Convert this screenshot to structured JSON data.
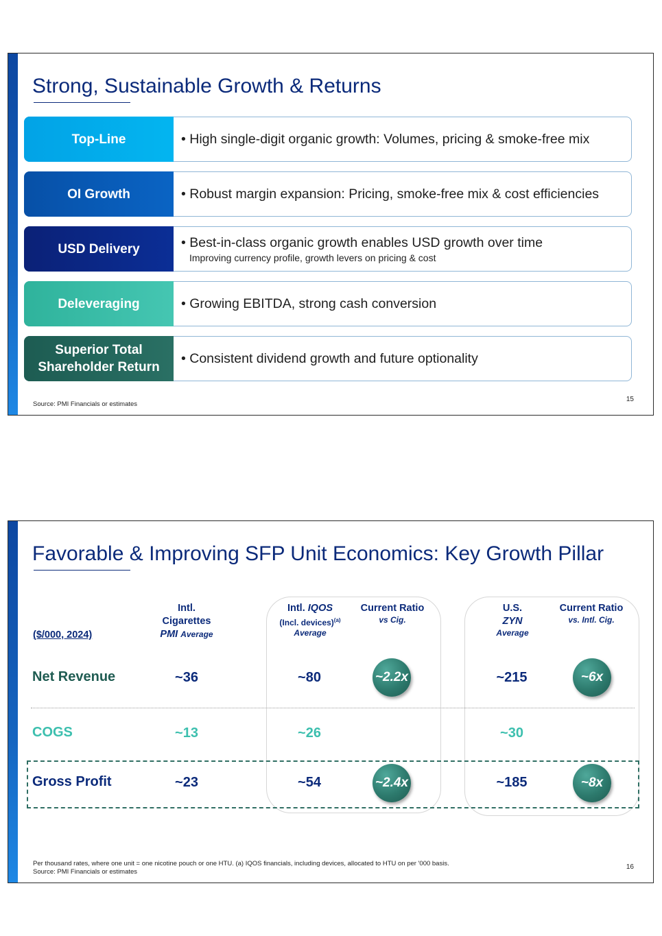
{
  "slide1": {
    "title": "Strong, Sustainable Growth & Returns",
    "rows": [
      {
        "label_lines": [
          "Top-Line"
        ],
        "text": "• High single-digit organic growth: Volumes, pricing & smoke-free mix",
        "sub": ""
      },
      {
        "label_lines": [
          "OI Growth"
        ],
        "text": "• Robust margin expansion: Pricing, smoke-free mix & cost efficiencies",
        "sub": ""
      },
      {
        "label_lines": [
          "USD Delivery"
        ],
        "text": "• Best-in-class organic growth enables USD growth over time",
        "sub": "Improving currency profile, growth levers on pricing & cost"
      },
      {
        "label_lines": [
          "Deleveraging"
        ],
        "text": "• Growing EBITDA, strong cash conversion",
        "sub": ""
      },
      {
        "label_lines": [
          "Superior Total",
          "Shareholder Return"
        ],
        "text": "• Consistent dividend growth and future optionality",
        "sub": ""
      }
    ],
    "source": "Source: PMI Financials or estimates",
    "page": "15"
  },
  "slide2": {
    "title": "Favorable & Improving SFP Unit Economics: Key Growth Pillar",
    "unit_label": "($/000, 2024)",
    "headers": {
      "intl_cig": {
        "l1": "Intl.",
        "l2": "Cigarettes",
        "l3a": "PMI",
        "l3b": "Average"
      },
      "intl_iqos": {
        "l1a": "Intl.",
        "l1b": "IQOS",
        "l2": "(Incl. devices)",
        "l2sup": "(a)",
        "l3": "Average"
      },
      "ratio1": {
        "l1": "Current Ratio",
        "l2": "vs Cig."
      },
      "us_zyn": {
        "l1": "U.S.",
        "l2": "ZYN",
        "l3": "Average"
      },
      "ratio2": {
        "l1": "Current Ratio",
        "l2": "vs. Intl. Cig."
      }
    },
    "rows": {
      "net_revenue": {
        "label": "Net Revenue",
        "intl_cig": "~36",
        "intl_iqos": "~80",
        "ratio1": "~2.2x",
        "us_zyn": "~215",
        "ratio2": "~6x"
      },
      "cogs": {
        "label": "COGS",
        "intl_cig": "~13",
        "intl_iqos": "~26",
        "us_zyn": "~30"
      },
      "gross_profit": {
        "label": "Gross Profit",
        "intl_cig": "~23",
        "intl_iqos": "~54",
        "ratio1": "~2.4x",
        "us_zyn": "~185",
        "ratio2": "~8x"
      }
    },
    "footnote1": "Per thousand rates, where one unit = one nicotine pouch or one HTU. (a) IQOS financials, including devices, allocated to HTU on per '000 basis.",
    "footnote2": "Source: PMI Financials or estimates",
    "page": "16"
  }
}
